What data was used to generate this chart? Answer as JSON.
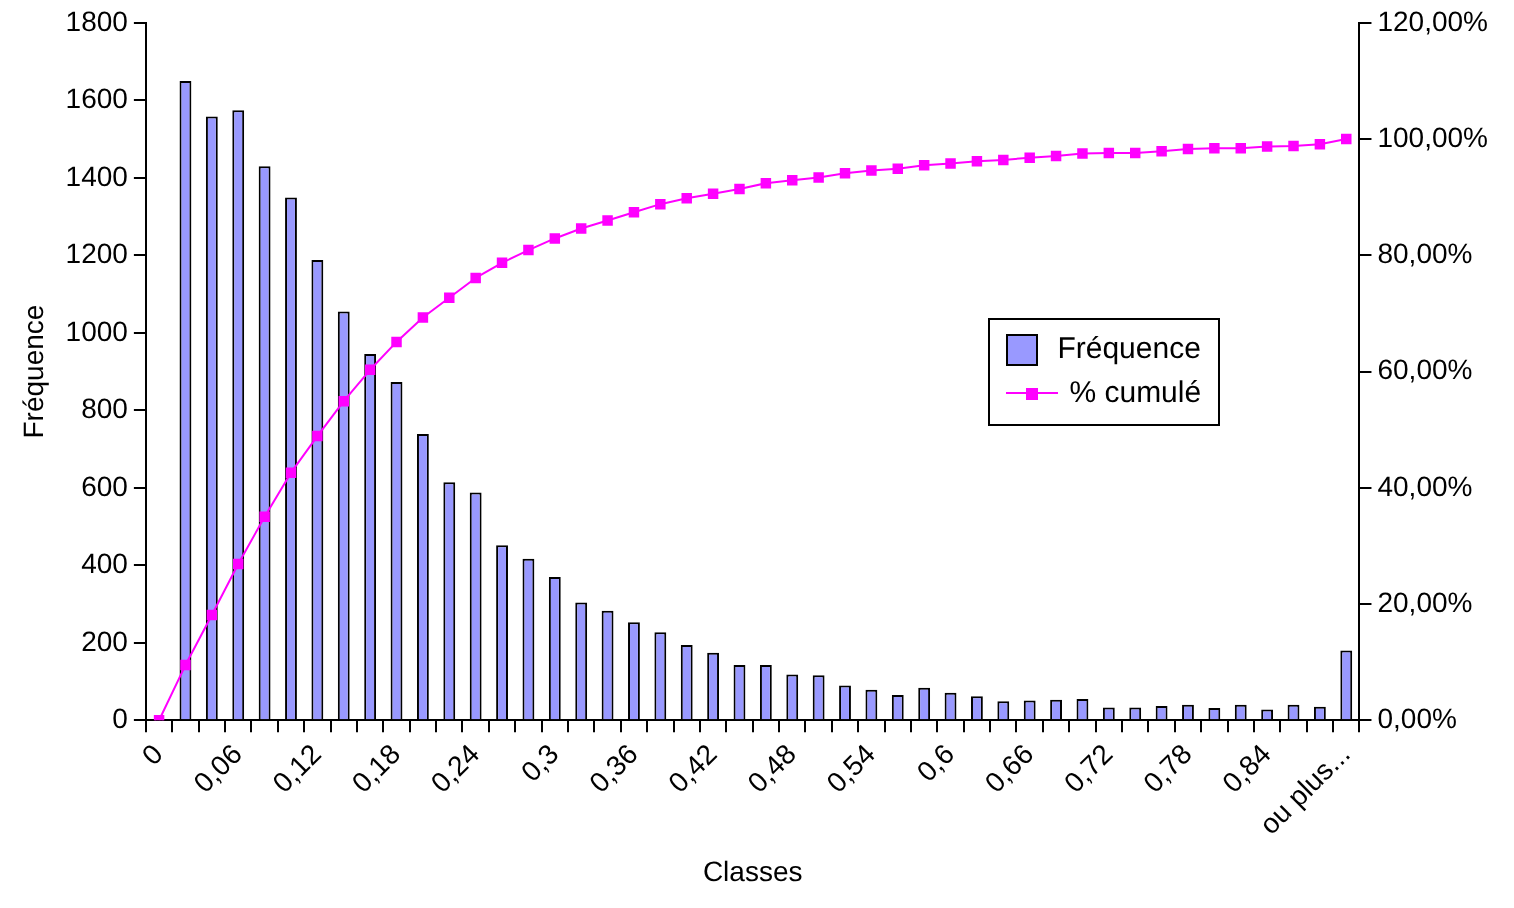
{
  "chart_data": {
    "type": "bar",
    "xlabel": "Classes",
    "ylabel": "Fréquence",
    "categories": [
      "0",
      null,
      null,
      "0,06",
      null,
      null,
      "0,12",
      null,
      null,
      "0,18",
      null,
      null,
      "0,24",
      null,
      null,
      "0,3",
      null,
      null,
      "0,36",
      null,
      null,
      "0,42",
      null,
      null,
      "0,48",
      null,
      null,
      "0,54",
      null,
      null,
      "0,6",
      null,
      null,
      "0,66",
      null,
      null,
      "0,72",
      null,
      null,
      "0,78",
      null,
      null,
      "0,84",
      null,
      null,
      "ou plus..."
    ],
    "series": [
      {
        "name": "Fréquence",
        "color": "#9999ff",
        "values": [
          null,
          1650,
          1558,
          1574,
          1430,
          1349,
          1188,
          1055,
          945,
          873,
          739,
          614,
          588,
          452,
          417,
          370,
          304,
          283,
          253,
          227,
          194,
          174,
          143,
          143,
          118,
          116,
          90,
          79,
          65,
          84,
          71,
          62,
          49,
          51,
          53,
          55,
          33,
          33,
          37,
          40,
          32,
          40,
          28,
          40,
          35,
          180
        ]
      },
      {
        "name": "% cumulé",
        "type": "line",
        "axis": "y2",
        "color": "#ff00ff",
        "values": [
          0,
          9.5,
          18.1,
          26.9,
          35.0,
          42.6,
          48.9,
          54.9,
          60.3,
          65.1,
          69.3,
          72.7,
          76.1,
          78.7,
          80.9,
          82.9,
          84.6,
          86.0,
          87.4,
          88.8,
          89.8,
          90.6,
          91.4,
          92.4,
          92.9,
          93.4,
          94.1,
          94.6,
          94.9,
          95.5,
          95.8,
          96.2,
          96.4,
          96.8,
          97.1,
          97.5,
          97.6,
          97.6,
          97.9,
          98.3,
          98.4,
          98.4,
          98.7,
          98.8,
          99.1,
          100
        ]
      }
    ],
    "ylim": [
      0,
      1800
    ],
    "yticks": [
      0,
      200,
      400,
      600,
      800,
      1000,
      1200,
      1400,
      1600,
      1800
    ],
    "y2lim": [
      0,
      120
    ],
    "y2ticks": [
      {
        "value": 0,
        "label": "0,00%"
      },
      {
        "value": 20,
        "label": "20,00%"
      },
      {
        "value": 40,
        "label": "40,00%"
      },
      {
        "value": 60,
        "label": "60,00%"
      },
      {
        "value": 80,
        "label": "80,00%"
      },
      {
        "value": 100,
        "label": "100,00%"
      },
      {
        "value": 120,
        "label": "120,00%"
      }
    ],
    "grid": false,
    "legend": "center right",
    "marker": "square",
    "line_style": "solid"
  }
}
